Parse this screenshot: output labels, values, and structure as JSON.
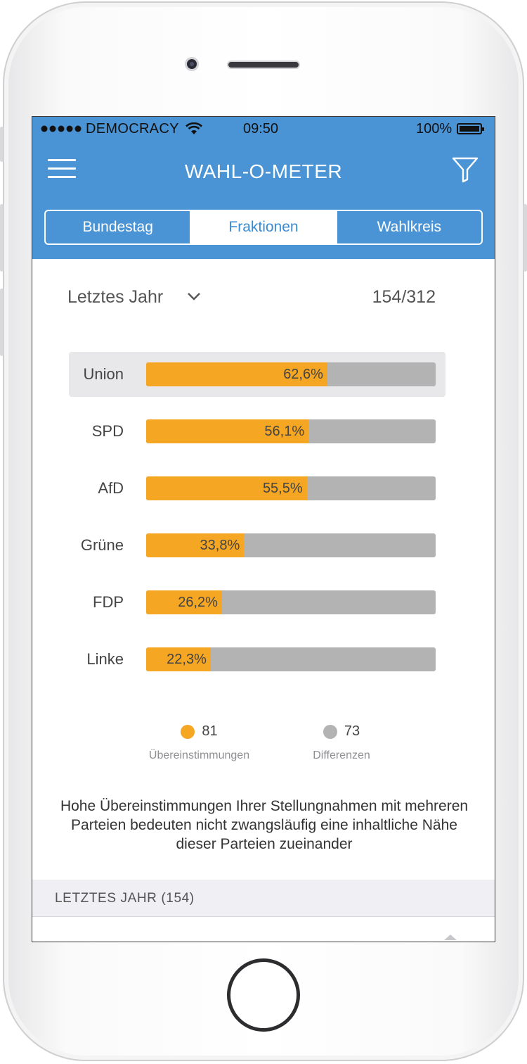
{
  "status_bar": {
    "signal_icon": "signal-dots-icon",
    "carrier": "DEMOCRACY",
    "wifi_icon": "wifi-icon",
    "time": "09:50",
    "battery": "100%",
    "battery_icon": "battery-icon"
  },
  "nav": {
    "title": "WAHL-O-METER",
    "menu_icon": "hamburger-menu-icon",
    "filter_icon": "filter-funnel-icon"
  },
  "tabs": [
    {
      "label": "Bundestag",
      "active": false
    },
    {
      "label": "Fraktionen",
      "active": true
    },
    {
      "label": "Wahlkreis",
      "active": false
    }
  ],
  "period": {
    "label": "Letztes Jahr",
    "dropdown_icon": "chevron-down-icon",
    "count": "154/312"
  },
  "chart_data": {
    "type": "bar",
    "orientation": "horizontal",
    "categories": [
      "Union",
      "SPD",
      "AfD",
      "Grüne",
      "FDP",
      "Linke"
    ],
    "values": [
      62.6,
      56.1,
      55.5,
      33.8,
      26.2,
      22.3
    ],
    "value_labels": [
      "62,6%",
      "56,1%",
      "55,5%",
      "33,8%",
      "26,2%",
      "22,3%"
    ],
    "xlim": [
      0,
      100
    ],
    "highlighted": "Union",
    "colors": {
      "match": "#f5a623",
      "diff": "#b3b3b3"
    }
  },
  "legend": [
    {
      "value": "81",
      "label": "Übereinstimmungen",
      "color": "#f5a623"
    },
    {
      "value": "73",
      "label": "Differenzen",
      "color": "#b3b3b3"
    }
  ],
  "note": "Hohe Übereinstimmungen Ihrer Stellungnahmen mit mehreren Parteien bedeuten nicht zwangsläufig eine inhaltliche Nähe dieser Parteien zueinander",
  "section": {
    "title": "LETZTES JAHR (154)"
  }
}
